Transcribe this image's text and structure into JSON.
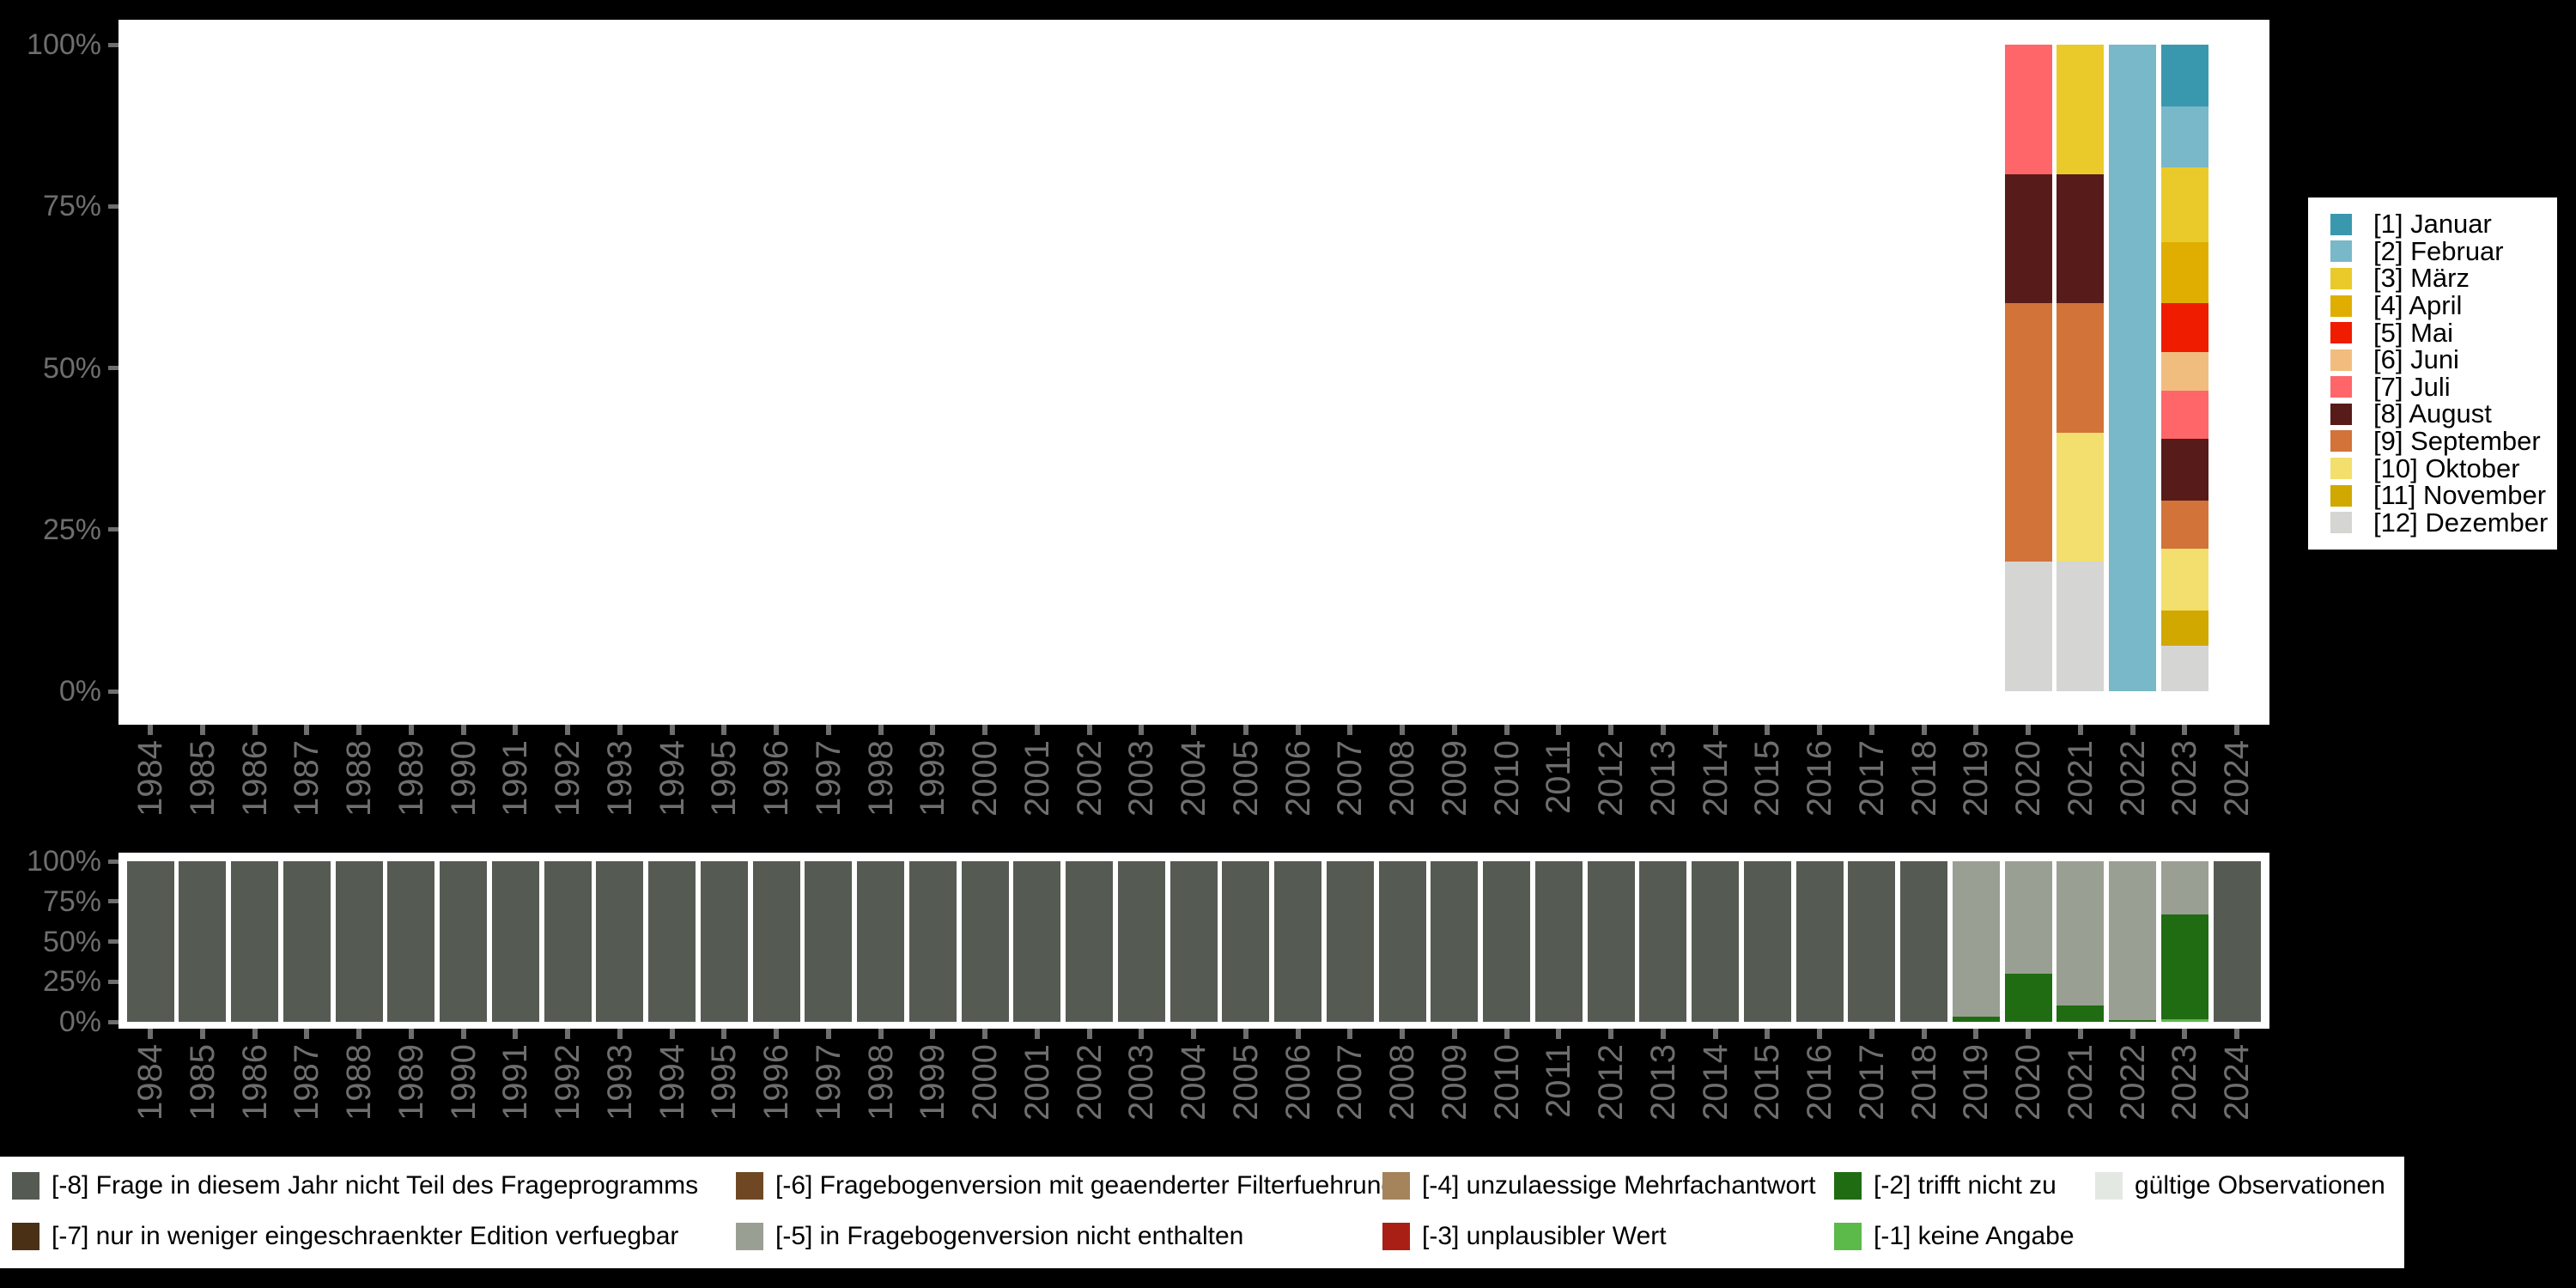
{
  "page": {
    "background": "#000000",
    "panel_background": "#ffffff",
    "axis_text_color": "#6e6e6e"
  },
  "x_axis": {
    "years": [
      "1984",
      "1985",
      "1986",
      "1987",
      "1988",
      "1989",
      "1990",
      "1991",
      "1992",
      "1993",
      "1994",
      "1995",
      "1996",
      "1997",
      "1998",
      "1999",
      "2000",
      "2001",
      "2002",
      "2003",
      "2004",
      "2005",
      "2006",
      "2007",
      "2008",
      "2009",
      "2010",
      "2011",
      "2012",
      "2013",
      "2014",
      "2015",
      "2016",
      "2017",
      "2018",
      "2019",
      "2020",
      "2021",
      "2022",
      "2023",
      "2024"
    ]
  },
  "y_axis": {
    "tick_labels": [
      "100%",
      "75%",
      "50%",
      "25%",
      "0%"
    ]
  },
  "month_legend": {
    "items": [
      {
        "month": 1,
        "label": "[1] Januar",
        "color": "#3a98ae"
      },
      {
        "month": 2,
        "label": "[2] Februar",
        "color": "#79b8c8"
      },
      {
        "month": 3,
        "label": "[3] März",
        "color": "#eaca2b"
      },
      {
        "month": 4,
        "label": "[4] April",
        "color": "#e0ae00"
      },
      {
        "month": 5,
        "label": "[5] Mai",
        "color": "#ef1c00"
      },
      {
        "month": 6,
        "label": "[6] Juni",
        "color": "#f1bd7e"
      },
      {
        "month": 7,
        "label": "[7] Juli",
        "color": "#fe666a"
      },
      {
        "month": 8,
        "label": "[8] August",
        "color": "#571b19"
      },
      {
        "month": 9,
        "label": "[9] September",
        "color": "#d27339"
      },
      {
        "month": 10,
        "label": "[10] Oktober",
        "color": "#f2df6d"
      },
      {
        "month": 11,
        "label": "[11] November",
        "color": "#d0a800"
      },
      {
        "month": 12,
        "label": "[12] Dezember",
        "color": "#d5d5d3"
      }
    ]
  },
  "code_legend": {
    "items": [
      {
        "code": "-8",
        "label": "[-8] Frage in diesem Jahr nicht Teil des Frageprogramms",
        "color": "#555b53"
      },
      {
        "code": "-7",
        "label": "[-7] nur in weniger eingeschraenkter Edition verfuegbar",
        "color": "#4a3115"
      },
      {
        "code": "-6",
        "label": "[-6] Fragebogenversion mit geaenderter Filterfuehrung",
        "color": "#6f4823"
      },
      {
        "code": "-5",
        "label": "[-5] in Fragebogenversion nicht enthalten",
        "color": "#9a9f93"
      },
      {
        "code": "-4",
        "label": "[-4] unzulaessige Mehrfachantwort",
        "color": "#a5835b"
      },
      {
        "code": "-3",
        "label": "[-3] unplausibler Wert",
        "color": "#aa1f15"
      },
      {
        "code": "-2",
        "label": "[-2] trifft nicht zu",
        "color": "#206c12"
      },
      {
        "code": "-1",
        "label": "[-1] keine Angabe",
        "color": "#5bba49"
      },
      {
        "code": "valid",
        "label": "gültige Observationen",
        "color": "#e4e8e2"
      }
    ]
  },
  "chart_data": [
    {
      "name": "interview-month-share-by-year",
      "type": "bar",
      "stacked": true,
      "unit": "percent",
      "ylim": [
        0,
        100
      ],
      "legend_position": "right",
      "note": "stack order top-to-bottom = ascending month; years without data have no bar",
      "bars": {
        "2020": [
          [
            7,
            20
          ],
          [
            8,
            20
          ],
          [
            9,
            40
          ],
          [
            12,
            20
          ]
        ],
        "2021": [
          [
            3,
            20
          ],
          [
            8,
            20
          ],
          [
            9,
            20
          ],
          [
            10,
            20
          ],
          [
            12,
            20
          ]
        ],
        "2022": [
          [
            2,
            100
          ]
        ],
        "2023": [
          [
            1,
            9.5
          ],
          [
            2,
            9.5
          ],
          [
            3,
            11.5
          ],
          [
            4,
            9.5
          ],
          [
            5,
            7.5
          ],
          [
            6,
            6
          ],
          [
            7,
            7.5
          ],
          [
            8,
            9.5
          ],
          [
            9,
            7.5
          ],
          [
            10,
            9.5
          ],
          [
            11,
            5.5
          ],
          [
            12,
            7
          ]
        ]
      }
    },
    {
      "name": "missing-code-share-by-year",
      "type": "bar",
      "stacked": true,
      "unit": "percent",
      "ylim": [
        0,
        100
      ],
      "legend_position": "bottom",
      "default_stack": [
        [
          "-8",
          100
        ]
      ],
      "bars": {
        "2019": [
          [
            "-5",
            97
          ],
          [
            "-2",
            3
          ]
        ],
        "2020": [
          [
            "-5",
            70
          ],
          [
            "-2",
            30
          ]
        ],
        "2021": [
          [
            "-5",
            90
          ],
          [
            "-2",
            10
          ]
        ],
        "2022": [
          [
            "-5",
            99
          ],
          [
            "-2",
            1
          ]
        ],
        "2023": [
          [
            "-5",
            33
          ],
          [
            "-2",
            65.5
          ],
          [
            "-1",
            1.5
          ]
        ]
      }
    }
  ]
}
